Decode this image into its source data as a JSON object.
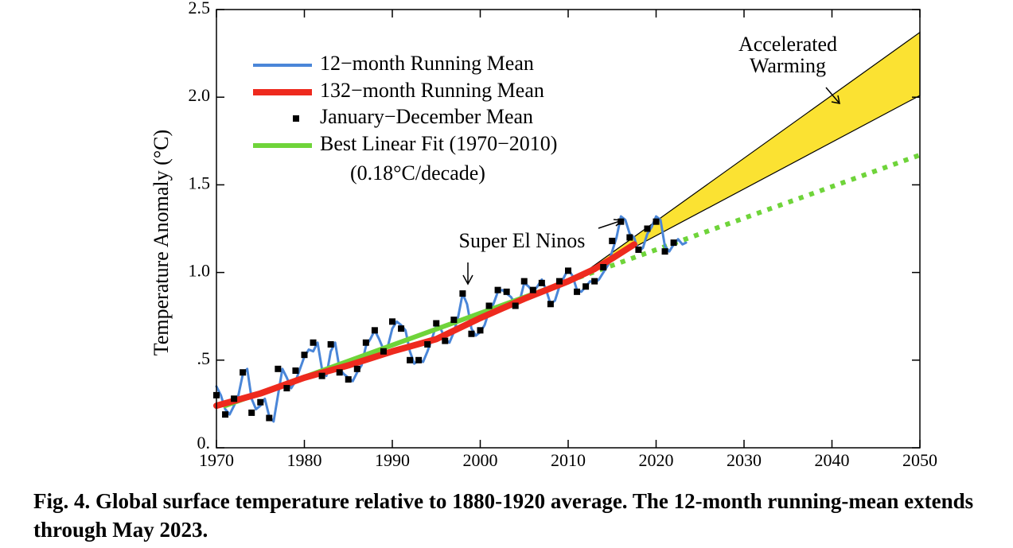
{
  "chart_data": {
    "type": "line",
    "ylabel": "Temperature Anomaly (°C)",
    "xlim": [
      1970,
      2050
    ],
    "xticks": [
      1970,
      1980,
      1990,
      2000,
      2010,
      2020,
      2030,
      2040,
      2050
    ],
    "ylim": [
      0,
      2.5
    ],
    "yticks": [
      {
        "value": 0,
        "label": "0."
      },
      {
        "value": 0.5,
        "label": ".5"
      },
      {
        "value": 1,
        "label": "1.0"
      },
      {
        "value": 1.5,
        "label": "1.5"
      },
      {
        "value": 2,
        "label": "2.0"
      },
      {
        "value": 2.5,
        "label": "2.5"
      }
    ],
    "series": [
      {
        "name": "12−month Running Mean",
        "type": "line",
        "color": "#4a86d8",
        "width": 3,
        "x": [
          1970.0,
          1970.5,
          1971.0,
          1971.5,
          1972.0,
          1972.5,
          1973.0,
          1973.5,
          1974.0,
          1974.5,
          1975.0,
          1975.5,
          1976.0,
          1976.5,
          1977.0,
          1977.5,
          1978.0,
          1978.5,
          1979.0,
          1979.5,
          1980.0,
          1980.5,
          1981.0,
          1981.5,
          1982.0,
          1982.5,
          1983.0,
          1983.5,
          1984.0,
          1984.5,
          1985.0,
          1985.5,
          1986.0,
          1986.5,
          1987.0,
          1987.5,
          1988.0,
          1988.5,
          1989.0,
          1989.5,
          1990.0,
          1990.5,
          1991.0,
          1991.5,
          1992.0,
          1992.5,
          1993.0,
          1993.5,
          1994.0,
          1994.5,
          1995.0,
          1995.5,
          1996.0,
          1996.5,
          1997.0,
          1997.5,
          1998.0,
          1998.5,
          1999.0,
          1999.5,
          2000.0,
          2000.5,
          2001.0,
          2001.5,
          2002.0,
          2002.5,
          2003.0,
          2003.5,
          2004.0,
          2004.5,
          2005.0,
          2005.5,
          2006.0,
          2006.5,
          2007.0,
          2007.5,
          2008.0,
          2008.5,
          2009.0,
          2009.5,
          2010.0,
          2010.5,
          2011.0,
          2011.5,
          2012.0,
          2012.5,
          2013.0,
          2013.5,
          2014.0,
          2014.5,
          2015.0,
          2015.5,
          2016.0,
          2016.5,
          2017.0,
          2017.5,
          2018.0,
          2018.5,
          2019.0,
          2019.5,
          2020.0,
          2020.5,
          2021.0,
          2021.5,
          2022.0,
          2022.5,
          2023.0,
          2023.4
        ],
        "values": [
          0.35,
          0.3,
          0.22,
          0.19,
          0.24,
          0.3,
          0.42,
          0.45,
          0.28,
          0.22,
          0.24,
          0.28,
          0.18,
          0.15,
          0.3,
          0.45,
          0.4,
          0.34,
          0.38,
          0.45,
          0.52,
          0.56,
          0.55,
          0.6,
          0.45,
          0.41,
          0.55,
          0.6,
          0.45,
          0.42,
          0.4,
          0.38,
          0.43,
          0.47,
          0.58,
          0.62,
          0.67,
          0.62,
          0.56,
          0.58,
          0.68,
          0.72,
          0.7,
          0.67,
          0.55,
          0.48,
          0.5,
          0.49,
          0.55,
          0.62,
          0.7,
          0.68,
          0.62,
          0.6,
          0.66,
          0.75,
          0.88,
          0.82,
          0.68,
          0.64,
          0.66,
          0.7,
          0.78,
          0.82,
          0.89,
          0.9,
          0.88,
          0.86,
          0.82,
          0.84,
          0.94,
          0.92,
          0.89,
          0.92,
          0.96,
          0.9,
          0.82,
          0.84,
          0.92,
          0.97,
          1.02,
          0.98,
          0.9,
          0.89,
          0.92,
          0.95,
          0.94,
          0.96,
          1.0,
          1.04,
          1.12,
          1.2,
          1.32,
          1.3,
          1.22,
          1.2,
          1.12,
          1.14,
          1.22,
          1.26,
          1.32,
          1.3,
          1.15,
          1.12,
          1.16,
          1.19,
          1.16,
          1.17
        ]
      },
      {
        "name": "132−month Running Mean",
        "type": "line",
        "color": "#ee2a1e",
        "width": 8,
        "x": [
          1970,
          1975,
          1980,
          1985,
          1990,
          1995,
          2000,
          2005,
          2010,
          2013,
          2015,
          2017.5
        ],
        "values": [
          0.24,
          0.31,
          0.4,
          0.47,
          0.55,
          0.62,
          0.74,
          0.85,
          0.95,
          1.02,
          1.08,
          1.16
        ]
      },
      {
        "name": "January−December Mean",
        "type": "scatter",
        "color": "#000000",
        "x": [
          1970,
          1971,
          1972,
          1973,
          1974,
          1975,
          1976,
          1977,
          1978,
          1979,
          1980,
          1981,
          1982,
          1983,
          1984,
          1985,
          1986,
          1987,
          1988,
          1989,
          1990,
          1991,
          1992,
          1993,
          1994,
          1995,
          1996,
          1997,
          1998,
          1999,
          2000,
          2001,
          2002,
          2003,
          2004,
          2005,
          2006,
          2007,
          2008,
          2009,
          2010,
          2011,
          2012,
          2013,
          2014,
          2015,
          2016,
          2017,
          2018,
          2019,
          2020,
          2021,
          2022
        ],
        "values": [
          0.3,
          0.19,
          0.28,
          0.43,
          0.2,
          0.26,
          0.17,
          0.45,
          0.34,
          0.44,
          0.53,
          0.6,
          0.41,
          0.59,
          0.43,
          0.39,
          0.45,
          0.6,
          0.67,
          0.55,
          0.72,
          0.68,
          0.5,
          0.5,
          0.59,
          0.71,
          0.61,
          0.73,
          0.88,
          0.65,
          0.67,
          0.81,
          0.9,
          0.89,
          0.81,
          0.95,
          0.9,
          0.94,
          0.82,
          0.95,
          1.01,
          0.89,
          0.92,
          0.95,
          1.03,
          1.18,
          1.29,
          1.2,
          1.13,
          1.25,
          1.29,
          1.12,
          1.17
        ]
      },
      {
        "name": "Best Linear Fit (1970−2010)",
        "type": "line",
        "color": "#6fd43a",
        "width": 6,
        "x": [
          1971,
          2010
        ],
        "values": [
          0.24,
          0.95
        ]
      }
    ],
    "fit_extension": {
      "color": "#6fd43a",
      "style": "dotted",
      "x": [
        2010,
        2050
      ],
      "values": [
        0.95,
        1.67
      ]
    },
    "band": {
      "color": "#fbe232",
      "x": [
        2011,
        2050
      ],
      "lower": [
        0.97,
        2.01
      ],
      "upper": [
        0.97,
        2.37
      ]
    },
    "fit_note": "(0.18°C/decade)",
    "annotations": [
      {
        "text": "Super El Ninos"
      },
      {
        "lines": [
          "Accelerated",
          "Warming"
        ]
      }
    ],
    "caption": "Fig. 4.  Global surface temperature relative to 1880-1920 average. The 12-month running-mean extends through May 2023."
  }
}
